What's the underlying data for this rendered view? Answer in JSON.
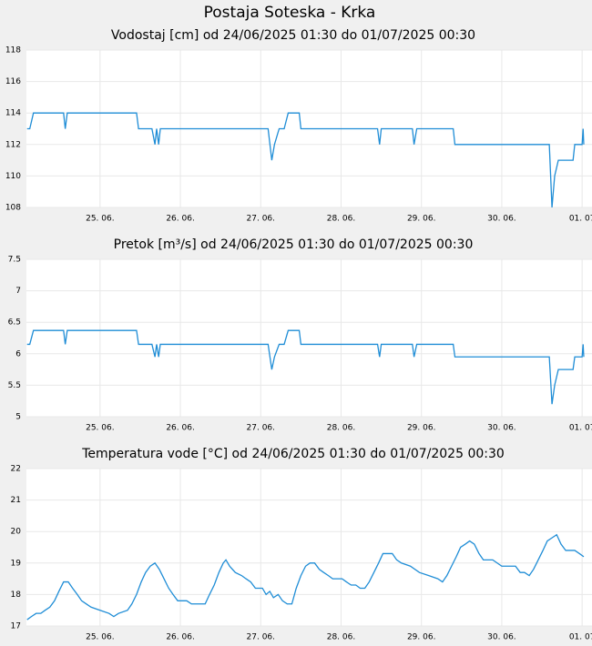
{
  "title": "Postaja Soteska - Krka",
  "chart_data": [
    {
      "type": "line",
      "title": "Vodostaj [cm] od 24/06/2025 01:30 do 01/07/2025 00:30",
      "color": "#1f8dd6",
      "grid": true,
      "x": [
        0.7,
        1.5,
        2.6,
        11.6,
        12.1,
        12.7,
        33.4,
        34,
        38,
        38.9,
        39.4,
        40,
        40.5,
        72.7,
        73.8,
        74.6,
        76,
        77.5,
        78.7,
        82,
        82.5,
        105.4,
        106,
        106.5,
        115.8,
        116.3,
        117.1,
        128,
        128.5,
        156.7,
        157.5,
        158.3,
        159.4,
        163.8,
        164.3,
        166.5,
        166.8,
        167
      ],
      "values": [
        113,
        113,
        114,
        114,
        113,
        114,
        114,
        113,
        113,
        112,
        113,
        112,
        113,
        113,
        111,
        112,
        113,
        113,
        114,
        114,
        113,
        113,
        112,
        113,
        113,
        112,
        113,
        113,
        112,
        112,
        108,
        110,
        111,
        111,
        112,
        112,
        113,
        112
      ],
      "xlim": [
        0.5,
        170
      ],
      "xticks": [
        {
          "value": 22.5,
          "label": "25. 06."
        },
        {
          "value": 46.5,
          "label": "26. 06."
        },
        {
          "value": 70.5,
          "label": "27. 06."
        },
        {
          "value": 94.5,
          "label": "28. 06."
        },
        {
          "value": 118.5,
          "label": "29. 06."
        },
        {
          "value": 142.5,
          "label": "30. 06."
        },
        {
          "value": 166.5,
          "label": "01. 07"
        }
      ],
      "ylim": [
        108,
        118
      ],
      "yticks": [
        108,
        110,
        112,
        114,
        116,
        118
      ]
    },
    {
      "type": "line",
      "title": "Pretok [m³/s] od 24/06/2025 01:30 do 01/07/2025 00:30",
      "color": "#1f8dd6",
      "grid": true,
      "x": [
        0.7,
        1.5,
        2.6,
        11.6,
        12.1,
        12.7,
        33.4,
        34,
        38,
        38.9,
        39.4,
        40,
        40.5,
        72.7,
        73.8,
        74.6,
        76,
        77.5,
        78.7,
        82,
        82.5,
        105.4,
        106,
        106.5,
        115.8,
        116.3,
        117.1,
        128,
        128.5,
        156.7,
        157.5,
        158.3,
        159.4,
        163.8,
        164.3,
        166.5,
        166.8,
        167
      ],
      "values": [
        6.15,
        6.15,
        6.37,
        6.37,
        6.15,
        6.37,
        6.37,
        6.15,
        6.15,
        5.95,
        6.15,
        5.95,
        6.15,
        6.15,
        5.75,
        5.95,
        6.15,
        6.15,
        6.37,
        6.37,
        6.15,
        6.15,
        5.95,
        6.15,
        6.15,
        5.95,
        6.15,
        6.15,
        5.95,
        5.95,
        5.2,
        5.5,
        5.75,
        5.75,
        5.95,
        5.95,
        6.15,
        5.95
      ],
      "xlim": [
        0.5,
        170
      ],
      "xticks": [
        {
          "value": 22.5,
          "label": "25. 06."
        },
        {
          "value": 46.5,
          "label": "26. 06."
        },
        {
          "value": 70.5,
          "label": "27. 06."
        },
        {
          "value": 94.5,
          "label": "28. 06."
        },
        {
          "value": 118.5,
          "label": "29. 06."
        },
        {
          "value": 142.5,
          "label": "30. 06."
        },
        {
          "value": 166.5,
          "label": "01. 07"
        }
      ],
      "ylim": [
        5,
        7.5
      ],
      "yticks": [
        5,
        5.5,
        6,
        6.5,
        7,
        7.5
      ]
    },
    {
      "type": "line",
      "title": "Temperatura vode [°C] od 24/06/2025 01:30 do 01/07/2025 00:30",
      "color": "#1f8dd6",
      "grid": true,
      "x": [
        0.7,
        2,
        3.4,
        4.8,
        6.1,
        7.5,
        8.9,
        10.2,
        11.6,
        13,
        14.3,
        15.7,
        17,
        18.4,
        19.8,
        22.5,
        25.2,
        26.6,
        28,
        30.7,
        32,
        33.4,
        34.8,
        36.1,
        37.5,
        38.9,
        40.2,
        41.6,
        43,
        44.3,
        45.7,
        48.4,
        49.8,
        53.9,
        55.2,
        56.6,
        58,
        59.3,
        60.1,
        61.2,
        62.9,
        64.8,
        66.1,
        67.5,
        68.9,
        71,
        72.1,
        73.2,
        74.3,
        75.7,
        77,
        78.4,
        79.8,
        81.1,
        82.5,
        83.9,
        85.2,
        86.6,
        88,
        89.3,
        90.7,
        92,
        94.8,
        96.1,
        97.5,
        98.9,
        100.2,
        101.6,
        102.9,
        104.3,
        105.7,
        107,
        109.8,
        111.1,
        112.5,
        115.2,
        117.9,
        120.7,
        123.4,
        124.8,
        126.1,
        127.5,
        128.9,
        130.2,
        131.6,
        132.9,
        134.3,
        135.7,
        137,
        139.8,
        142.5,
        146.6,
        148,
        149.3,
        150.7,
        152,
        153.4,
        154.8,
        156.1,
        157.5,
        158.9,
        160.2,
        161.6,
        164.3,
        165.7,
        167
      ],
      "values": [
        17.2,
        17.3,
        17.4,
        17.4,
        17.5,
        17.6,
        17.8,
        18.1,
        18.4,
        18.4,
        18.2,
        18,
        17.8,
        17.7,
        17.6,
        17.5,
        17.4,
        17.3,
        17.4,
        17.5,
        17.7,
        18,
        18.4,
        18.7,
        18.9,
        19,
        18.8,
        18.5,
        18.2,
        18,
        17.8,
        17.8,
        17.7,
        17.7,
        18,
        18.3,
        18.7,
        19,
        19.1,
        18.9,
        18.7,
        18.6,
        18.5,
        18.4,
        18.2,
        18.2,
        18,
        18.1,
        17.9,
        18,
        17.8,
        17.7,
        17.7,
        18.2,
        18.6,
        18.9,
        19,
        19,
        18.8,
        18.7,
        18.6,
        18.5,
        18.5,
        18.4,
        18.3,
        18.3,
        18.2,
        18.2,
        18.4,
        18.7,
        19,
        19.3,
        19.3,
        19.1,
        19,
        18.9,
        18.7,
        18.6,
        18.5,
        18.4,
        18.6,
        18.9,
        19.2,
        19.5,
        19.6,
        19.7,
        19.6,
        19.3,
        19.1,
        19.1,
        18.9,
        18.9,
        18.7,
        18.7,
        18.6,
        18.8,
        19.1,
        19.4,
        19.7,
        19.8,
        19.9,
        19.6,
        19.4,
        19.4,
        19.3,
        19.2
      ],
      "xlim": [
        0.5,
        170
      ],
      "xticks": [
        {
          "value": 22.5,
          "label": "25. 06."
        },
        {
          "value": 46.5,
          "label": "26. 06."
        },
        {
          "value": 70.5,
          "label": "27. 06."
        },
        {
          "value": 94.5,
          "label": "28. 06."
        },
        {
          "value": 118.5,
          "label": "29. 06."
        },
        {
          "value": 142.5,
          "label": "30. 06."
        },
        {
          "value": 166.5,
          "label": "01. 07"
        }
      ],
      "ylim": [
        17,
        22
      ],
      "yticks": [
        17,
        18,
        19,
        20,
        21,
        22
      ]
    }
  ]
}
